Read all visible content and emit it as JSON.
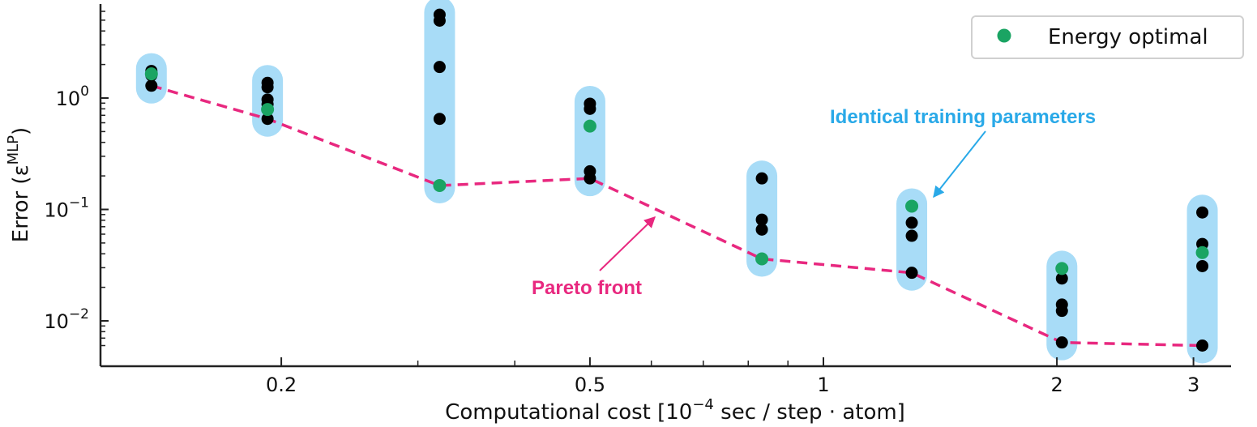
{
  "chart_data": {
    "type": "scatter",
    "title": "",
    "xlabel": "Computational cost [10^-4 sec / step · atom]",
    "ylabel": "Error (ε^MLP)",
    "xscale": "log",
    "yscale": "log",
    "xlim": [
      0.117,
      3.6
    ],
    "ylim": [
      0.0052,
      7.6
    ],
    "x_ticks": [
      {
        "value": 0.2,
        "label": "0.2"
      },
      {
        "value": 0.5,
        "label": "0.5"
      },
      {
        "value": 1,
        "label": "1"
      },
      {
        "value": 2,
        "label": "2"
      },
      {
        "value": 3,
        "label": "3"
      }
    ],
    "y_ticks": [
      {
        "value": 1,
        "label_base": "10",
        "label_exp": "0"
      },
      {
        "value": 0.1,
        "label_base": "10",
        "label_exp": "−1"
      },
      {
        "value": 0.01,
        "label_base": "10",
        "label_exp": "−2"
      }
    ],
    "grid": false,
    "legend": {
      "position": "upper right",
      "entries": [
        {
          "label": "Energy optimal",
          "color": "#1aa463",
          "marker": "circle"
        }
      ]
    },
    "groups": [
      {
        "x": 0.136,
        "models": [
          1.75,
          1.6,
          1.29
        ],
        "energy_optimal": 1.65
      },
      {
        "x": 0.192,
        "models": [
          1.37,
          1.25,
          0.97,
          0.88,
          0.65
        ],
        "energy_optimal": 0.79
      },
      {
        "x": 0.32,
        "models": [
          5.6,
          4.95,
          1.9,
          0.65
        ],
        "energy_optimal": 0.164
      },
      {
        "x": 0.5,
        "models": [
          0.89,
          0.8,
          0.22,
          0.19
        ],
        "energy_optimal": 0.56
      },
      {
        "x": 0.833,
        "models": [
          0.19,
          0.081,
          0.066
        ],
        "energy_optimal": 0.036
      },
      {
        "x": 1.3,
        "models": [
          0.076,
          0.058,
          0.027
        ],
        "energy_optimal": 0.107
      },
      {
        "x": 2.03,
        "models": [
          0.024,
          0.014,
          0.0123,
          0.0064
        ],
        "energy_optimal": 0.0295
      },
      {
        "x": 3.08,
        "models": [
          0.094,
          0.049,
          0.031,
          0.006
        ],
        "energy_optimal": 0.041
      }
    ],
    "pareto_front": {
      "x": [
        0.136,
        0.192,
        0.32,
        0.5,
        0.833,
        1.3,
        2.03,
        3.08
      ],
      "y": [
        1.29,
        0.65,
        0.164,
        0.19,
        0.036,
        0.027,
        0.0064,
        0.006
      ],
      "style": "dashed",
      "color": "#e8287f"
    },
    "annotations": [
      {
        "text": "Pareto front",
        "color": "#e8287f"
      },
      {
        "text": "Identical training parameters",
        "color": "#29a9e8"
      }
    ],
    "colors": {
      "model_point": "#000000",
      "energy_optimal": "#1aa463",
      "group_band": "#a8dcf7",
      "pareto": "#e8287f",
      "identical_annot": "#29a9e8"
    }
  },
  "labels": {
    "xlabel_prefix": "Computational cost [10",
    "xlabel_exp": "−4",
    "xlabel_suffix": " sec / step · atom]",
    "ylabel_prefix": "Error (ε",
    "ylabel_sup": "MLP",
    "ylabel_suffix": ")",
    "legend_entry": "Energy optimal",
    "pareto_annot": "Pareto front",
    "identical_annot": "Identical training parameters"
  }
}
